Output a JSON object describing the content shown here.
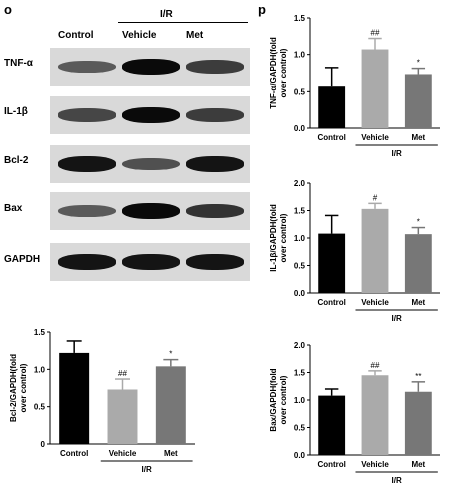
{
  "panels": {
    "left": "o",
    "right": "p"
  },
  "western_blot": {
    "columns": [
      "Control",
      "Vehicle",
      "Met"
    ],
    "group_label": "I/R",
    "rows": [
      {
        "label": "TNF-α",
        "intensity": [
          0.55,
          0.95,
          0.7
        ]
      },
      {
        "label": "IL-1β",
        "intensity": [
          0.65,
          0.95,
          0.7
        ]
      },
      {
        "label": "Bcl-2",
        "intensity": [
          0.9,
          0.6,
          0.9
        ]
      },
      {
        "label": "Bax",
        "intensity": [
          0.55,
          0.95,
          0.75
        ]
      },
      {
        "label": "GAPDH",
        "intensity": [
          0.9,
          0.9,
          0.9
        ]
      }
    ]
  },
  "colors": {
    "control": "#000000",
    "vehicle": "#aaaaaa",
    "met": "#777777",
    "blot_bg": "#d9d9d9"
  },
  "chart_data": [
    {
      "type": "bar",
      "categories": [
        "Control",
        "Vehicle",
        "Met"
      ],
      "values": [
        0.57,
        1.07,
        0.73
      ],
      "errors": [
        0.25,
        0.15,
        0.08
      ],
      "annotations": [
        "",
        "##",
        "*"
      ],
      "ylabel": "TNF-α/GAPDH(fold over control)",
      "xlabel": "I/R",
      "ylim": [
        0,
        1.5
      ],
      "yticks": [
        "0.0",
        "0.5",
        "1.0",
        "1.5"
      ]
    },
    {
      "type": "bar",
      "categories": [
        "Control",
        "Vehicle",
        "Met"
      ],
      "values": [
        1.08,
        1.53,
        1.07
      ],
      "errors": [
        0.33,
        0.1,
        0.12
      ],
      "annotations": [
        "",
        "#",
        "*"
      ],
      "ylabel": "IL-1β/GAPDH(fold over control)",
      "xlabel": "I/R",
      "ylim": [
        0,
        2.0
      ],
      "yticks": [
        "0.0",
        "0.5",
        "1.0",
        "1.5",
        "2.0"
      ]
    },
    {
      "type": "bar",
      "categories": [
        "Control",
        "Vehicle",
        "Met"
      ],
      "values": [
        1.22,
        0.73,
        1.04
      ],
      "errors": [
        0.16,
        0.14,
        0.09
      ],
      "annotations": [
        "",
        "##",
        "*"
      ],
      "ylabel": "Bcl-2/GAPDH(fold over control)",
      "xlabel": "I/R",
      "ylim": [
        0,
        1.5
      ],
      "yticks": [
        "0",
        "0.5",
        "1.0",
        "1.5"
      ]
    },
    {
      "type": "bar",
      "categories": [
        "Control",
        "Vehicle",
        "Met"
      ],
      "values": [
        1.08,
        1.45,
        1.15
      ],
      "errors": [
        0.12,
        0.08,
        0.18
      ],
      "annotations": [
        "",
        "##",
        "**"
      ],
      "ylabel": "Bax/GAPDH(fold over control)",
      "xlabel": "I/R",
      "ylim": [
        0,
        2.0
      ],
      "yticks": [
        "0.0",
        "0.5",
        "1.0",
        "1.5",
        "2.0"
      ]
    }
  ]
}
